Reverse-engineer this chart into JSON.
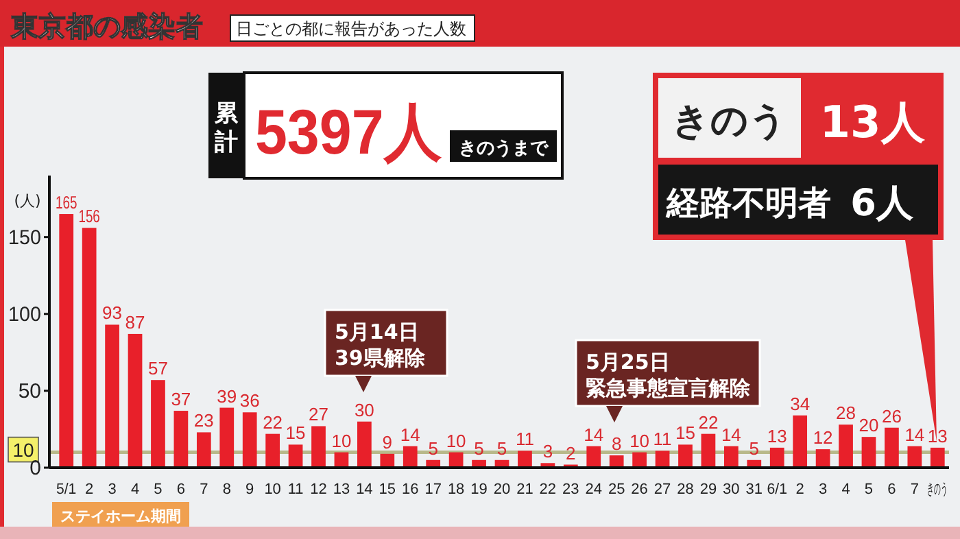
{
  "chart_data": {
    "type": "bar",
    "title": "東京都の感染者",
    "subtitle": "日ごとの都に報告があった人数",
    "ylabel": "(人)",
    "categories": [
      "5/1",
      "2",
      "3",
      "4",
      "5",
      "6",
      "7",
      "8",
      "9",
      "10",
      "11",
      "12",
      "13",
      "14",
      "15",
      "16",
      "17",
      "18",
      "19",
      "20",
      "21",
      "22",
      "23",
      "24",
      "25",
      "26",
      "27",
      "28",
      "29",
      "30",
      "31",
      "6/1",
      "2",
      "3",
      "4",
      "5",
      "6",
      "7",
      "きのう"
    ],
    "values": [
      165,
      156,
      93,
      87,
      57,
      37,
      23,
      39,
      36,
      22,
      15,
      27,
      10,
      30,
      9,
      14,
      5,
      10,
      5,
      5,
      11,
      3,
      2,
      14,
      8,
      10,
      11,
      15,
      22,
      14,
      5,
      13,
      34,
      12,
      28,
      20,
      26,
      14,
      13
    ],
    "color": "#e8202a",
    "data_labels": true,
    "ylim": [
      0,
      190
    ],
    "yticks": [
      0,
      50,
      100,
      150
    ],
    "grid": false,
    "ref_lines": [
      {
        "axis": "y",
        "value": 10,
        "label": "10",
        "color": "#b8b98a"
      }
    ],
    "annotations": [
      "累計",
      "5397人",
      "きのうまで",
      "きのう",
      "13人",
      "経路不明者",
      "6人",
      "ステイホーム期間",
      "5月14日",
      "39県解除",
      "5月25日",
      "緊急事態宣言解除"
    ]
  }
}
